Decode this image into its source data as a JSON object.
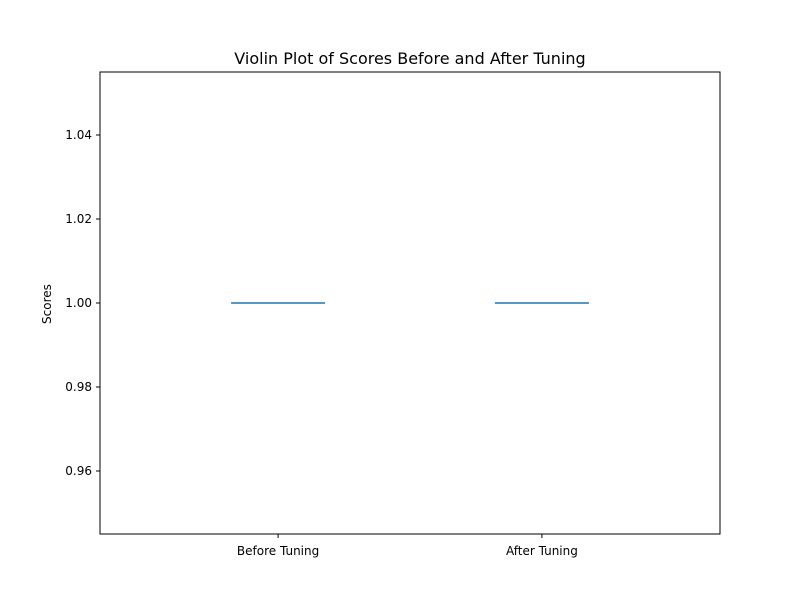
{
  "chart_data": {
    "type": "violin",
    "title": "Violin Plot of Scores Before and After Tuning",
    "xlabel": "",
    "ylabel": "Scores",
    "categories": [
      "Before Tuning",
      "After Tuning"
    ],
    "series": [
      {
        "values": [
          1.0,
          1.0
        ]
      }
    ],
    "ylim": [
      0.945,
      1.055
    ],
    "yticks": [
      0.96,
      0.98,
      1.0,
      1.02,
      1.04
    ],
    "ytick_labels": [
      "0.96",
      "0.98",
      "1.00",
      "1.02",
      "1.04"
    ],
    "grid": false,
    "colors": {
      "series": "#1f77b4",
      "axes": "#000000"
    }
  }
}
